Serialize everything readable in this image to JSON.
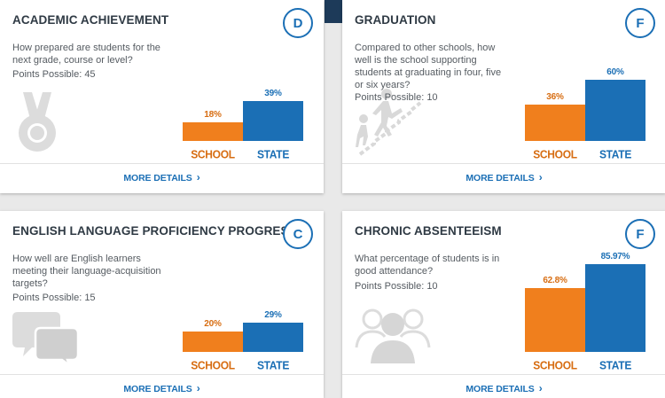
{
  "cards": [
    {
      "title": "ACADEMIC ACHIEVEMENT",
      "grade": "D",
      "question": "How prepared are students for the next grade, course or level?",
      "points": "Points Possible: 45",
      "icon": "medal-icon",
      "school_label": "18%",
      "state_label": "39%",
      "school_value": 18,
      "state_value": 39,
      "school_cat": "SCHOOL",
      "state_cat": "STATE",
      "more": "MORE DETAILS"
    },
    {
      "title": "GRADUATION",
      "grade": "F",
      "question": "Compared to other schools, how well is the school supporting students at graduating in four, five or six years?",
      "points": "Points Possible: 10",
      "icon": "climbing-stairs-icon",
      "school_label": "36%",
      "state_label": "60%",
      "school_value": 36,
      "state_value": 60,
      "school_cat": "SCHOOL",
      "state_cat": "STATE",
      "more": "MORE DETAILS"
    },
    {
      "title": "ENGLISH LANGUAGE PROFICIENCY PROGRESS",
      "grade": "C",
      "question": "How well are English learners meeting their language-acquisition targets?",
      "points": "Points Possible: 15",
      "icon": "speech-bubbles-icon",
      "school_label": "20%",
      "state_label": "29%",
      "school_value": 20,
      "state_value": 29,
      "school_cat": "SCHOOL",
      "state_cat": "STATE",
      "more": "MORE DETAILS"
    },
    {
      "title": "CHRONIC ABSENTEEISM",
      "grade": "F",
      "question": "What percentage of students is in good attendance?",
      "points": "Points Possible: 10",
      "icon": "people-group-icon",
      "school_label": "62.8%",
      "state_label": "85.97%",
      "school_value": 62.8,
      "state_value": 85.97,
      "school_cat": "SCHOOL",
      "state_cat": "STATE",
      "more": "MORE DETAILS"
    }
  ],
  "colors": {
    "school": "#f07f1d",
    "state": "#1b6fb5",
    "grade_border": "#1b6fb5",
    "title": "#2f3a44",
    "icon": "#d9d9d9"
  }
}
